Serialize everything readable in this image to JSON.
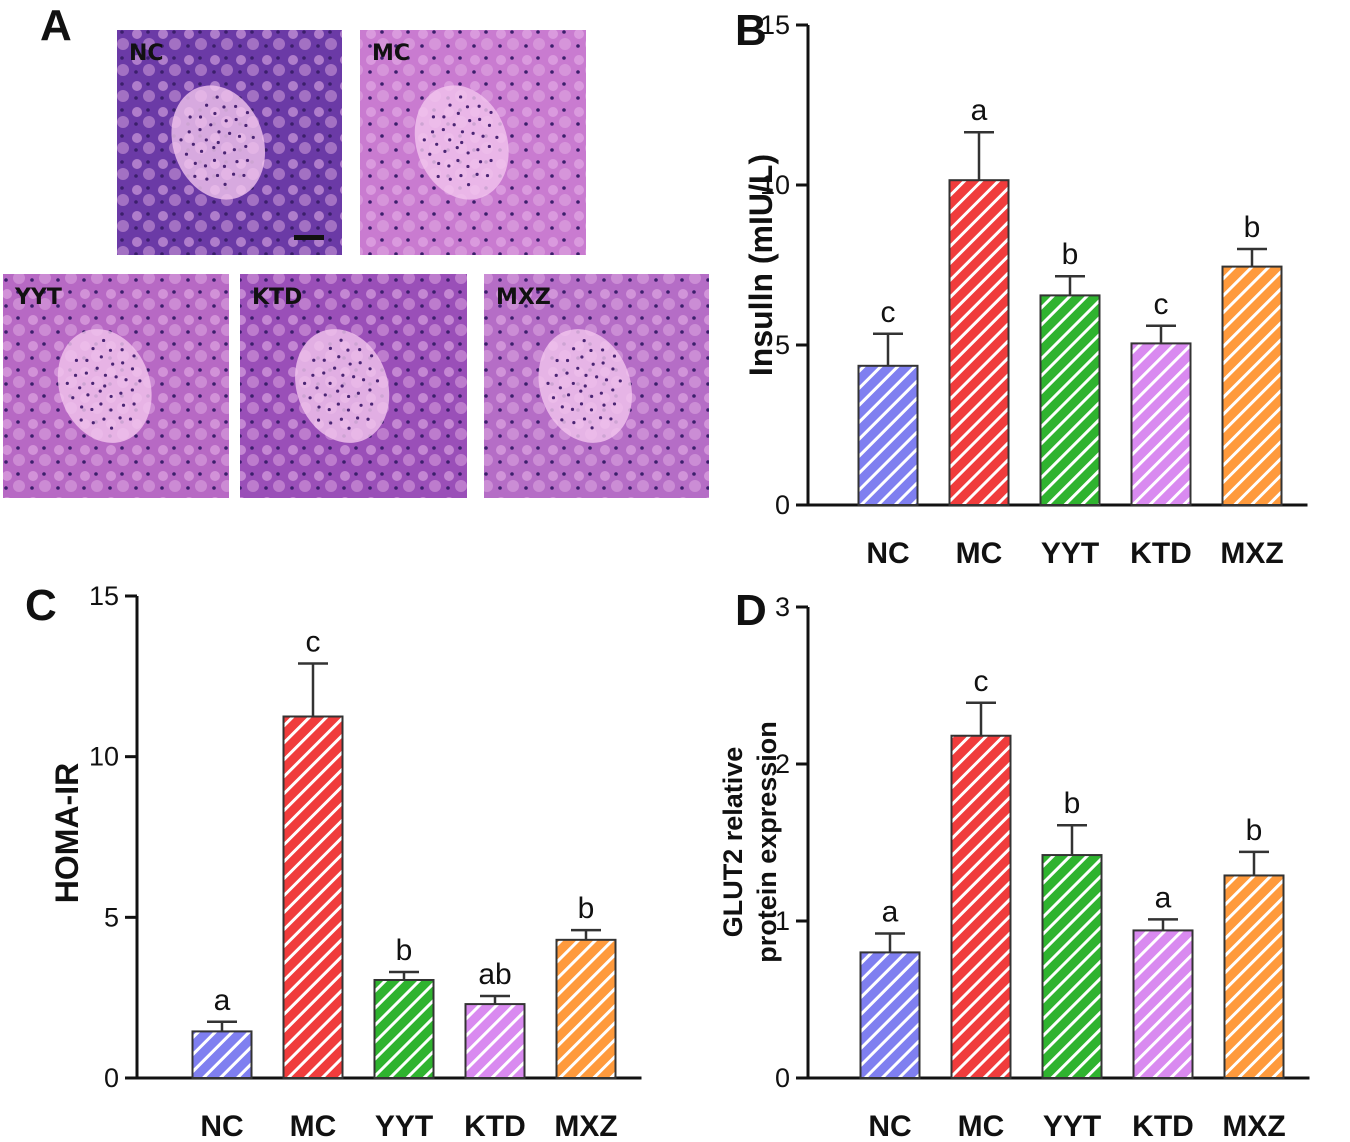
{
  "panels": {
    "A": {
      "letter": "A",
      "images": [
        {
          "label": "NC",
          "tone": "#6b3aa6"
        },
        {
          "label": "MC",
          "tone": "#c97bd0"
        },
        {
          "label": "YYT",
          "tone": "#b769c4"
        },
        {
          "label": "KTD",
          "tone": "#9a4fb8"
        },
        {
          "label": "MXZ",
          "tone": "#b56dc6"
        }
      ]
    }
  },
  "chart_data": [
    {
      "panel": "B",
      "type": "bar",
      "categories": [
        "NC",
        "MC",
        "YYT",
        "KTD",
        "MXZ"
      ],
      "values": [
        4.35,
        10.15,
        6.55,
        5.05,
        7.45
      ],
      "errors": [
        1.0,
        1.5,
        0.6,
        0.55,
        0.55
      ],
      "significance": [
        "c",
        "a",
        "b",
        "c",
        "b"
      ],
      "ylabel": "Insulln (mIU/L)",
      "ylim": [
        0,
        15
      ],
      "yticks": [
        0,
        5,
        10,
        15
      ],
      "colors": [
        "#7f7ff0",
        "#f03c3c",
        "#2fb32f",
        "#d98af0",
        "#ff9a3c"
      ],
      "pattern": "diagonal-hatch"
    },
    {
      "panel": "C",
      "type": "bar",
      "categories": [
        "NC",
        "MC",
        "YYT",
        "KTD",
        "MXZ"
      ],
      "values": [
        1.45,
        11.25,
        3.05,
        2.3,
        4.3
      ],
      "errors": [
        0.3,
        1.65,
        0.25,
        0.25,
        0.3
      ],
      "significance": [
        "a",
        "c",
        "b",
        "ab",
        "b"
      ],
      "ylabel": "HOMA-IR",
      "ylim": [
        0,
        15
      ],
      "yticks": [
        0,
        5,
        10,
        15
      ],
      "colors": [
        "#7f7ff0",
        "#f03c3c",
        "#2fb32f",
        "#d98af0",
        "#ff9a3c"
      ],
      "pattern": "diagonal-hatch"
    },
    {
      "panel": "D",
      "type": "bar",
      "categories": [
        "NC",
        "MC",
        "YYT",
        "KTD",
        "MXZ"
      ],
      "values": [
        0.8,
        2.18,
        1.42,
        0.94,
        1.29
      ],
      "errors": [
        0.12,
        0.21,
        0.19,
        0.07,
        0.15
      ],
      "significance": [
        "a",
        "c",
        "b",
        "a",
        "b"
      ],
      "ylabel": [
        "GLUT2 relative",
        "protein expression"
      ],
      "ylim": [
        0,
        3
      ],
      "yticks": [
        0,
        1,
        2,
        3
      ],
      "colors": [
        "#7f7ff0",
        "#f03c3c",
        "#2fb32f",
        "#d98af0",
        "#ff9a3c"
      ],
      "pattern": "diagonal-hatch"
    }
  ]
}
